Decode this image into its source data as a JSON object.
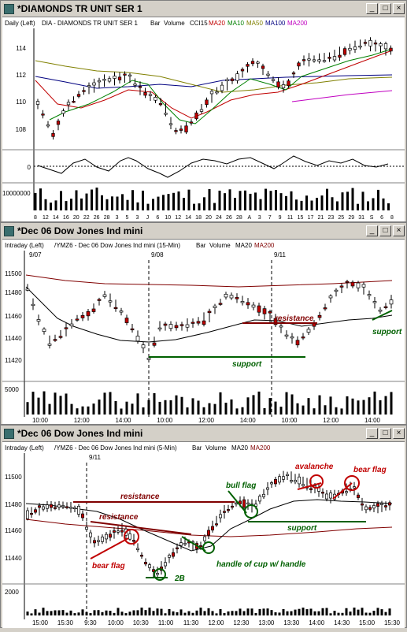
{
  "win1": {
    "title": "*DIAMONDS TR UNIT SER 1",
    "header": [
      "Daily (Left)",
      "DIA - DIAMONDS TR UNIT SER 1",
      "Bar",
      "Volume",
      "CCI15"
    ],
    "ma": [
      {
        "label": "MA20",
        "color": "#c00000"
      },
      {
        "label": "MA10",
        "color": "#008000"
      },
      {
        "label": "MA50",
        "color": "#808000"
      },
      {
        "label": "MA100",
        "color": "#000080"
      },
      {
        "label": "MA200",
        "color": "#c000c0"
      }
    ],
    "price_ticks": [
      "114",
      "112",
      "110",
      "108"
    ],
    "cci_tick": "0",
    "vol_tick": "10000000",
    "x_ticks": [
      "8",
      "12",
      "14",
      "16",
      "20",
      "22",
      "26",
      "28",
      "3",
      "5",
      "3",
      "J",
      "6",
      "10",
      "12",
      "14",
      "18",
      "20",
      "24",
      "26",
      "28",
      "A",
      "3",
      "7",
      "9",
      "11",
      "15",
      "17",
      "21",
      "23",
      "25",
      "29",
      "31",
      "S",
      "6",
      "8"
    ]
  },
  "win2": {
    "title": "*Dec 06  Dow Jones Ind mini",
    "header": [
      "Intraday (Left)",
      "/YMZ6 - Dec 06  Dow Jones Ind mini (15-Min)",
      "Bar",
      "Volume",
      "MA20",
      "MA200"
    ],
    "dates": [
      "9/07",
      "9/08",
      "9/11"
    ],
    "price_ticks": [
      "11500",
      "11480",
      "11460",
      "11440",
      "11420"
    ],
    "vol_tick": "5000",
    "x_ticks": [
      "10:00",
      "12:00",
      "14:00",
      "10:00",
      "12:00",
      "14:00",
      "10:00",
      "12:00",
      "14:00"
    ],
    "annotations": {
      "resistance": "resistance",
      "support1": "support",
      "support2": "support"
    }
  },
  "win3": {
    "title": "*Dec 06  Dow Jones Ind mini",
    "header": [
      "Intraday (Left)",
      "/YMZ6 - Dec 06  Dow Jones Ind mini (5-Min)",
      "Bar",
      "Volume",
      "MA20",
      "MA200"
    ],
    "dates": [
      "9/11"
    ],
    "price_ticks": [
      "11500",
      "11480",
      "11460",
      "11440"
    ],
    "vol_tick": "2000",
    "x_ticks": [
      "15:00",
      "15:30",
      "9:30",
      "10:00",
      "10:30",
      "11:00",
      "11:30",
      "12:00",
      "12:30",
      "13:00",
      "13:30",
      "14:00",
      "14:30",
      "15:00",
      "15:30"
    ],
    "annotations": {
      "resistance1": "resistance",
      "resistance2": "resistance",
      "bear_flag1": "bear flag",
      "two_b": "2B",
      "handle": "handle of cup w/ handle",
      "bull_flag": "bull flag",
      "avalanche": "avalanche",
      "bear_flag2": "bear flag",
      "support": "support"
    }
  }
}
